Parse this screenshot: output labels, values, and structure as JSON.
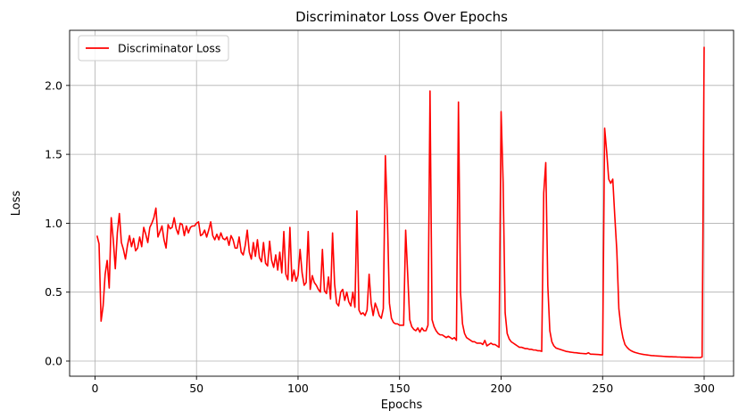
{
  "chart_data": {
    "type": "line",
    "title": "Discriminator Loss Over Epochs",
    "xlabel": "Epochs",
    "ylabel": "Loss",
    "xlim": [
      -12.5,
      314.5
    ],
    "ylim": [
      -0.11,
      2.4
    ],
    "xticks": [
      0,
      50,
      100,
      150,
      200,
      250,
      300
    ],
    "yticks": [
      0.0,
      0.5,
      1.0,
      1.5,
      2.0
    ],
    "grid": true,
    "legend_position": "top-left",
    "series": [
      {
        "name": "Discriminator Loss",
        "color": "#ff0000",
        "points": [
          [
            1,
            0.91
          ],
          [
            2,
            0.85
          ],
          [
            3,
            0.29
          ],
          [
            4,
            0.4
          ],
          [
            5,
            0.63
          ],
          [
            6,
            0.73
          ],
          [
            7,
            0.53
          ],
          [
            8,
            1.04
          ],
          [
            9,
            0.88
          ],
          [
            10,
            0.67
          ],
          [
            11,
            0.93
          ],
          [
            12,
            1.07
          ],
          [
            13,
            0.86
          ],
          [
            14,
            0.81
          ],
          [
            15,
            0.74
          ],
          [
            16,
            0.84
          ],
          [
            17,
            0.91
          ],
          [
            18,
            0.83
          ],
          [
            19,
            0.89
          ],
          [
            20,
            0.8
          ],
          [
            21,
            0.82
          ],
          [
            22,
            0.9
          ],
          [
            23,
            0.83
          ],
          [
            24,
            0.97
          ],
          [
            25,
            0.92
          ],
          [
            26,
            0.86
          ],
          [
            27,
            0.97
          ],
          [
            28,
            1.0
          ],
          [
            29,
            1.04
          ],
          [
            30,
            1.11
          ],
          [
            31,
            0.9
          ],
          [
            32,
            0.94
          ],
          [
            33,
            0.98
          ],
          [
            34,
            0.88
          ],
          [
            35,
            0.82
          ],
          [
            36,
            0.99
          ],
          [
            37,
            0.96
          ],
          [
            38,
            0.97
          ],
          [
            39,
            1.04
          ],
          [
            40,
            0.96
          ],
          [
            41,
            0.92
          ],
          [
            42,
            1.0
          ],
          [
            43,
            0.99
          ],
          [
            44,
            0.91
          ],
          [
            45,
            0.98
          ],
          [
            46,
            0.93
          ],
          [
            47,
            0.97
          ],
          [
            48,
            0.98
          ],
          [
            49,
            0.98
          ],
          [
            50,
            1.0
          ],
          [
            51,
            1.01
          ],
          [
            52,
            0.91
          ],
          [
            53,
            0.92
          ],
          [
            54,
            0.95
          ],
          [
            55,
            0.9
          ],
          [
            56,
            0.95
          ],
          [
            57,
            1.01
          ],
          [
            58,
            0.91
          ],
          [
            59,
            0.88
          ],
          [
            60,
            0.92
          ],
          [
            61,
            0.88
          ],
          [
            62,
            0.93
          ],
          [
            63,
            0.89
          ],
          [
            64,
            0.88
          ],
          [
            65,
            0.9
          ],
          [
            66,
            0.84
          ],
          [
            67,
            0.91
          ],
          [
            68,
            0.88
          ],
          [
            69,
            0.82
          ],
          [
            70,
            0.82
          ],
          [
            71,
            0.9
          ],
          [
            72,
            0.79
          ],
          [
            73,
            0.77
          ],
          [
            74,
            0.84
          ],
          [
            75,
            0.95
          ],
          [
            76,
            0.79
          ],
          [
            77,
            0.74
          ],
          [
            78,
            0.86
          ],
          [
            79,
            0.76
          ],
          [
            80,
            0.88
          ],
          [
            81,
            0.75
          ],
          [
            82,
            0.72
          ],
          [
            83,
            0.86
          ],
          [
            84,
            0.71
          ],
          [
            85,
            0.69
          ],
          [
            86,
            0.87
          ],
          [
            87,
            0.73
          ],
          [
            88,
            0.68
          ],
          [
            89,
            0.77
          ],
          [
            90,
            0.66
          ],
          [
            91,
            0.79
          ],
          [
            92,
            0.64
          ],
          [
            93,
            0.94
          ],
          [
            94,
            0.63
          ],
          [
            95,
            0.59
          ],
          [
            96,
            0.97
          ],
          [
            97,
            0.58
          ],
          [
            98,
            0.66
          ],
          [
            99,
            0.58
          ],
          [
            100,
            0.62
          ],
          [
            101,
            0.81
          ],
          [
            102,
            0.64
          ],
          [
            103,
            0.55
          ],
          [
            104,
            0.57
          ],
          [
            105,
            0.94
          ],
          [
            106,
            0.52
          ],
          [
            107,
            0.62
          ],
          [
            108,
            0.57
          ],
          [
            109,
            0.55
          ],
          [
            110,
            0.52
          ],
          [
            111,
            0.5
          ],
          [
            112,
            0.81
          ],
          [
            113,
            0.51
          ],
          [
            114,
            0.49
          ],
          [
            115,
            0.61
          ],
          [
            116,
            0.45
          ],
          [
            117,
            0.93
          ],
          [
            118,
            0.56
          ],
          [
            119,
            0.42
          ],
          [
            120,
            0.4
          ],
          [
            121,
            0.5
          ],
          [
            122,
            0.52
          ],
          [
            123,
            0.44
          ],
          [
            124,
            0.5
          ],
          [
            125,
            0.43
          ],
          [
            126,
            0.4
          ],
          [
            127,
            0.5
          ],
          [
            128,
            0.39
          ],
          [
            129,
            1.09
          ],
          [
            130,
            0.37
          ],
          [
            131,
            0.34
          ],
          [
            132,
            0.35
          ],
          [
            133,
            0.33
          ],
          [
            134,
            0.37
          ],
          [
            135,
            0.63
          ],
          [
            136,
            0.42
          ],
          [
            137,
            0.33
          ],
          [
            138,
            0.42
          ],
          [
            139,
            0.38
          ],
          [
            140,
            0.33
          ],
          [
            141,
            0.31
          ],
          [
            142,
            0.38
          ],
          [
            143,
            1.49
          ],
          [
            144,
            1.05
          ],
          [
            145,
            0.42
          ],
          [
            146,
            0.31
          ],
          [
            147,
            0.28
          ],
          [
            148,
            0.27
          ],
          [
            149,
            0.27
          ],
          [
            150,
            0.26
          ],
          [
            151,
            0.26
          ],
          [
            152,
            0.26
          ],
          [
            153,
            0.95
          ],
          [
            154,
            0.63
          ],
          [
            155,
            0.3
          ],
          [
            156,
            0.25
          ],
          [
            157,
            0.23
          ],
          [
            158,
            0.22
          ],
          [
            159,
            0.24
          ],
          [
            160,
            0.21
          ],
          [
            161,
            0.24
          ],
          [
            162,
            0.22
          ],
          [
            163,
            0.22
          ],
          [
            164,
            0.26
          ],
          [
            165,
            1.96
          ],
          [
            166,
            0.3
          ],
          [
            167,
            0.25
          ],
          [
            168,
            0.22
          ],
          [
            169,
            0.2
          ],
          [
            170,
            0.19
          ],
          [
            171,
            0.19
          ],
          [
            172,
            0.18
          ],
          [
            173,
            0.17
          ],
          [
            174,
            0.18
          ],
          [
            175,
            0.17
          ],
          [
            176,
            0.16
          ],
          [
            177,
            0.17
          ],
          [
            178,
            0.15
          ],
          [
            179,
            1.88
          ],
          [
            180,
            0.5
          ],
          [
            181,
            0.27
          ],
          [
            182,
            0.2
          ],
          [
            183,
            0.17
          ],
          [
            184,
            0.16
          ],
          [
            185,
            0.15
          ],
          [
            186,
            0.14
          ],
          [
            187,
            0.14
          ],
          [
            188,
            0.13
          ],
          [
            189,
            0.13
          ],
          [
            190,
            0.13
          ],
          [
            191,
            0.12
          ],
          [
            192,
            0.15
          ],
          [
            193,
            0.11
          ],
          [
            194,
            0.12
          ],
          [
            195,
            0.13
          ],
          [
            196,
            0.12
          ],
          [
            197,
            0.12
          ],
          [
            198,
            0.11
          ],
          [
            199,
            0.1
          ],
          [
            200,
            1.81
          ],
          [
            201,
            1.3
          ],
          [
            202,
            0.35
          ],
          [
            203,
            0.2
          ],
          [
            204,
            0.16
          ],
          [
            205,
            0.14
          ],
          [
            206,
            0.13
          ],
          [
            207,
            0.12
          ],
          [
            208,
            0.11
          ],
          [
            209,
            0.1
          ],
          [
            210,
            0.1
          ],
          [
            211,
            0.095
          ],
          [
            212,
            0.09
          ],
          [
            213,
            0.09
          ],
          [
            214,
            0.085
          ],
          [
            215,
            0.085
          ],
          [
            216,
            0.08
          ],
          [
            217,
            0.08
          ],
          [
            218,
            0.075
          ],
          [
            219,
            0.075
          ],
          [
            220,
            0.07
          ],
          [
            221,
            1.22
          ],
          [
            222,
            1.44
          ],
          [
            223,
            0.55
          ],
          [
            224,
            0.22
          ],
          [
            225,
            0.14
          ],
          [
            226,
            0.11
          ],
          [
            227,
            0.095
          ],
          [
            228,
            0.09
          ],
          [
            229,
            0.085
          ],
          [
            230,
            0.08
          ],
          [
            231,
            0.075
          ],
          [
            232,
            0.07
          ],
          [
            233,
            0.068
          ],
          [
            234,
            0.065
          ],
          [
            235,
            0.063
          ],
          [
            236,
            0.061
          ],
          [
            237,
            0.06
          ],
          [
            238,
            0.058
          ],
          [
            239,
            0.056
          ],
          [
            240,
            0.055
          ],
          [
            241,
            0.054
          ],
          [
            242,
            0.053
          ],
          [
            243,
            0.06
          ],
          [
            244,
            0.05
          ],
          [
            245,
            0.05
          ],
          [
            246,
            0.049
          ],
          [
            247,
            0.048
          ],
          [
            248,
            0.047
          ],
          [
            249,
            0.046
          ],
          [
            250,
            0.045
          ],
          [
            251,
            1.69
          ],
          [
            252,
            1.52
          ],
          [
            253,
            1.32
          ],
          [
            254,
            1.29
          ],
          [
            255,
            1.32
          ],
          [
            256,
            1.05
          ],
          [
            257,
            0.8
          ],
          [
            258,
            0.38
          ],
          [
            259,
            0.25
          ],
          [
            260,
            0.17
          ],
          [
            261,
            0.12
          ],
          [
            262,
            0.1
          ],
          [
            263,
            0.085
          ],
          [
            264,
            0.075
          ],
          [
            265,
            0.068
          ],
          [
            266,
            0.062
          ],
          [
            267,
            0.058
          ],
          [
            268,
            0.054
          ],
          [
            269,
            0.051
          ],
          [
            270,
            0.048
          ],
          [
            271,
            0.046
          ],
          [
            272,
            0.044
          ],
          [
            273,
            0.042
          ],
          [
            274,
            0.04
          ],
          [
            275,
            0.039
          ],
          [
            276,
            0.038
          ],
          [
            277,
            0.037
          ],
          [
            278,
            0.036
          ],
          [
            279,
            0.035
          ],
          [
            280,
            0.034
          ],
          [
            281,
            0.033
          ],
          [
            282,
            0.032
          ],
          [
            283,
            0.031
          ],
          [
            284,
            0.031
          ],
          [
            285,
            0.03
          ],
          [
            286,
            0.03
          ],
          [
            287,
            0.029
          ],
          [
            288,
            0.029
          ],
          [
            289,
            0.028
          ],
          [
            290,
            0.028
          ],
          [
            291,
            0.027
          ],
          [
            292,
            0.027
          ],
          [
            293,
            0.026
          ],
          [
            294,
            0.026
          ],
          [
            295,
            0.025
          ],
          [
            296,
            0.025
          ],
          [
            297,
            0.025
          ],
          [
            298,
            0.025
          ],
          [
            299,
            0.03
          ],
          [
            300,
            2.28
          ]
        ]
      }
    ]
  }
}
